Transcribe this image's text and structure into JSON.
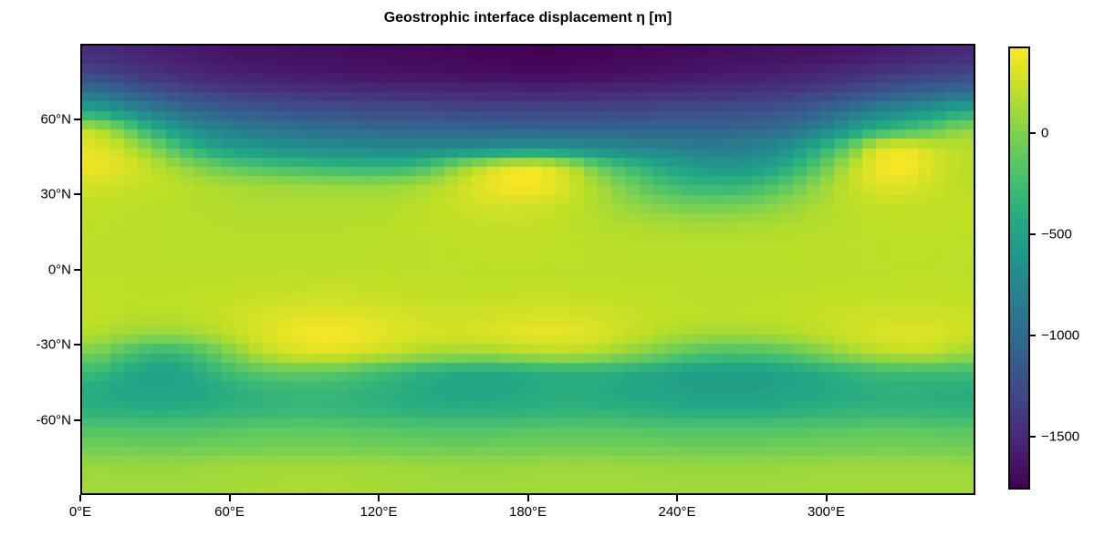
{
  "figure": {
    "background": "#ffffff",
    "text_color": "#000000"
  },
  "chart_data": {
    "type": "heatmap",
    "title": "Geostrophic interface displacement η [m]",
    "xlabel": "",
    "ylabel": "",
    "colormap": "viridis",
    "colormap_stops": [
      "#440154",
      "#482475",
      "#414487",
      "#355f8d",
      "#2a788e",
      "#21918c",
      "#22a884",
      "#44bf70",
      "#7ad151",
      "#bddf26",
      "#fde725"
    ],
    "vmin": -1760,
    "vmax": 430,
    "x_range": [
      0,
      360
    ],
    "y_range": [
      -90,
      90
    ],
    "grid": false,
    "legend_position": "colorbar-right",
    "x_ticks": [
      {
        "value": 0,
        "label": "0°E"
      },
      {
        "value": 60,
        "label": "60°E"
      },
      {
        "value": 120,
        "label": "120°E"
      },
      {
        "value": 180,
        "label": "180°E"
      },
      {
        "value": 240,
        "label": "240°E"
      },
      {
        "value": 300,
        "label": "300°E"
      }
    ],
    "y_ticks": [
      {
        "value": 60,
        "label": "60°N"
      },
      {
        "value": 30,
        "label": "30°N"
      },
      {
        "value": 0,
        "label": "0°N"
      },
      {
        "value": -30,
        "label": "-30°N"
      },
      {
        "value": -60,
        "label": "-60°N"
      }
    ],
    "colorbar_ticks": [
      {
        "value": 0,
        "label": "0"
      },
      {
        "value": -500,
        "label": "−500"
      },
      {
        "value": -1000,
        "label": "−1000"
      },
      {
        "value": -1500,
        "label": "−1500"
      }
    ],
    "lon": [
      5.6,
      16.9,
      28.1,
      39.4,
      50.6,
      61.9,
      73.1,
      84.4,
      95.6,
      106.9,
      118.1,
      129.4,
      140.6,
      151.9,
      163.1,
      174.4,
      185.6,
      196.9,
      208.1,
      219.4,
      230.6,
      241.9,
      253.1,
      264.4,
      275.6,
      286.9,
      298.1,
      309.4,
      320.6,
      331.9,
      343.1,
      354.4
    ],
    "lat": [
      84.4,
      76.9,
      69.4,
      61.9,
      54.4,
      46.9,
      39.4,
      31.9,
      24.4,
      16.9,
      9.4,
      1.9,
      -5.6,
      -13.1,
      -20.6,
      -28.1,
      -35.6,
      -43.1,
      -50.6,
      -58.1,
      -65.6,
      -73.1,
      -80.6,
      -88.1
    ],
    "values": [
      [
        -1480,
        -1520,
        -1560,
        -1590,
        -1620,
        -1650,
        -1660,
        -1670,
        -1680,
        -1690,
        -1700,
        -1710,
        -1720,
        -1730,
        -1740,
        -1750,
        -1760,
        -1750,
        -1740,
        -1730,
        -1720,
        -1700,
        -1690,
        -1680,
        -1670,
        -1660,
        -1650,
        -1630,
        -1600,
        -1570,
        -1530,
        -1500
      ],
      [
        -1300,
        -1380,
        -1450,
        -1500,
        -1540,
        -1570,
        -1590,
        -1610,
        -1620,
        -1630,
        -1640,
        -1650,
        -1660,
        -1670,
        -1680,
        -1690,
        -1700,
        -1690,
        -1680,
        -1670,
        -1650,
        -1630,
        -1620,
        -1600,
        -1580,
        -1560,
        -1530,
        -1490,
        -1440,
        -1390,
        -1340,
        -1310
      ],
      [
        -950,
        -1080,
        -1200,
        -1290,
        -1350,
        -1390,
        -1420,
        -1440,
        -1460,
        -1470,
        -1480,
        -1490,
        -1500,
        -1510,
        -1520,
        -1520,
        -1530,
        -1520,
        -1510,
        -1500,
        -1490,
        -1480,
        -1470,
        -1450,
        -1430,
        -1400,
        -1350,
        -1280,
        -1200,
        -1130,
        -1050,
        -980
      ],
      [
        -480,
        -640,
        -820,
        -960,
        -1060,
        -1120,
        -1160,
        -1190,
        -1210,
        -1230,
        -1250,
        -1260,
        -1270,
        -1280,
        -1290,
        -1290,
        -1300,
        -1300,
        -1290,
        -1280,
        -1270,
        -1260,
        -1250,
        -1230,
        -1200,
        -1150,
        -1060,
        -930,
        -800,
        -700,
        -600,
        -450
      ],
      [
        220,
        -40,
        -380,
        -600,
        -760,
        -850,
        -900,
        -940,
        -970,
        -990,
        -1010,
        -1020,
        -1030,
        -1040,
        -1050,
        -1050,
        -1060,
        -1060,
        -1050,
        -1050,
        -1040,
        -1040,
        -1050,
        -1040,
        -1010,
        -940,
        -800,
        -600,
        -380,
        -250,
        -120,
        60
      ],
      [
        350,
        240,
        40,
        -230,
        -440,
        -560,
        -620,
        -660,
        -690,
        -710,
        -730,
        -740,
        -740,
        -730,
        -700,
        -660,
        -650,
        -680,
        -720,
        -760,
        -790,
        -810,
        -830,
        -820,
        -760,
        -620,
        -380,
        -80,
        330,
        400,
        280,
        200
      ],
      [
        380,
        330,
        220,
        100,
        -30,
        -130,
        -200,
        -250,
        -290,
        -320,
        -330,
        -320,
        -180,
        60,
        260,
        380,
        390,
        220,
        -80,
        -250,
        -400,
        -520,
        -600,
        -620,
        -550,
        -370,
        -120,
        180,
        390,
        430,
        310,
        200
      ],
      [
        280,
        260,
        230,
        200,
        170,
        140,
        120,
        110,
        100,
        90,
        90,
        110,
        160,
        260,
        360,
        420,
        400,
        290,
        140,
        -30,
        -180,
        -290,
        -340,
        -330,
        -250,
        -100,
        80,
        230,
        330,
        340,
        260,
        200
      ],
      [
        220,
        210,
        200,
        190,
        180,
        170,
        160,
        160,
        160,
        160,
        170,
        180,
        210,
        250,
        290,
        300,
        280,
        230,
        160,
        80,
        10,
        -40,
        -60,
        -50,
        0,
        80,
        150,
        200,
        230,
        230,
        220,
        220
      ],
      [
        210,
        205,
        200,
        195,
        190,
        185,
        180,
        180,
        180,
        185,
        190,
        200,
        215,
        230,
        240,
        240,
        230,
        210,
        185,
        160,
        140,
        125,
        120,
        125,
        140,
        160,
        180,
        200,
        210,
        215,
        215,
        212
      ],
      [
        205,
        202,
        200,
        198,
        196,
        195,
        194,
        194,
        195,
        197,
        200,
        203,
        207,
        211,
        214,
        215,
        214,
        210,
        205,
        199,
        194,
        191,
        190,
        191,
        194,
        198,
        202,
        206,
        209,
        211,
        211,
        208
      ],
      [
        203,
        201,
        199,
        197,
        195,
        194,
        193,
        193,
        194,
        196,
        199,
        202,
        206,
        209,
        212,
        213,
        212,
        209,
        204,
        199,
        195,
        192,
        191,
        192,
        195,
        198,
        202,
        205,
        208,
        210,
        210,
        206
      ],
      [
        205,
        204,
        203,
        203,
        204,
        206,
        209,
        212,
        214,
        215,
        214,
        211,
        208,
        205,
        203,
        202,
        202,
        203,
        204,
        205,
        205,
        204,
        202,
        200,
        199,
        199,
        200,
        202,
        204,
        206,
        207,
        206
      ],
      [
        215,
        212,
        210,
        212,
        220,
        232,
        246,
        258,
        264,
        262,
        252,
        240,
        232,
        230,
        234,
        240,
        243,
        240,
        232,
        222,
        213,
        207,
        204,
        204,
        207,
        212,
        218,
        224,
        229,
        232,
        231,
        224
      ],
      [
        220,
        205,
        195,
        200,
        225,
        262,
        300,
        330,
        345,
        340,
        318,
        290,
        272,
        268,
        276,
        290,
        300,
        295,
        276,
        252,
        230,
        215,
        207,
        206,
        212,
        224,
        240,
        257,
        270,
        278,
        276,
        258
      ],
      [
        180,
        120,
        85,
        95,
        150,
        235,
        320,
        385,
        415,
        408,
        370,
        325,
        295,
        290,
        310,
        345,
        370,
        362,
        322,
        262,
        200,
        152,
        125,
        122,
        140,
        175,
        220,
        268,
        308,
        330,
        325,
        272
      ],
      [
        -30,
        -200,
        -330,
        -310,
        -170,
        40,
        200,
        300,
        330,
        315,
        265,
        205,
        150,
        115,
        120,
        160,
        200,
        205,
        160,
        80,
        -20,
        -120,
        -200,
        -230,
        -200,
        -120,
        -10,
        100,
        185,
        230,
        225,
        120
      ],
      [
        -280,
        -420,
        -510,
        -500,
        -350,
        -230,
        -140,
        -100,
        -110,
        -150,
        -250,
        -320,
        -390,
        -440,
        -460,
        -440,
        -400,
        -370,
        -380,
        -420,
        -470,
        -520,
        -550,
        -560,
        -540,
        -490,
        -420,
        -350,
        -290,
        -260,
        -270,
        -270
      ],
      [
        -420,
        -480,
        -510,
        -500,
        -450,
        -390,
        -340,
        -310,
        -310,
        -330,
        -370,
        -410,
        -450,
        -470,
        -470,
        -450,
        -430,
        -420,
        -430,
        -460,
        -490,
        -520,
        -540,
        -545,
        -530,
        -500,
        -460,
        -420,
        -390,
        -380,
        -390,
        -410
      ],
      [
        -380,
        -400,
        -415,
        -410,
        -385,
        -355,
        -330,
        -315,
        -315,
        -330,
        -350,
        -375,
        -395,
        -405,
        -400,
        -385,
        -370,
        -360,
        -365,
        -380,
        -400,
        -420,
        -430,
        -430,
        -420,
        -400,
        -380,
        -360,
        -350,
        -350,
        -355,
        -365
      ],
      [
        -170,
        -180,
        -190,
        -185,
        -170,
        -155,
        -145,
        -140,
        -140,
        -150,
        -160,
        -170,
        -180,
        -185,
        -180,
        -170,
        -160,
        -155,
        -158,
        -165,
        -175,
        -185,
        -190,
        -190,
        -182,
        -170,
        -158,
        -148,
        -143,
        -143,
        -148,
        -158
      ],
      [
        -55,
        -60,
        -65,
        -63,
        -57,
        -50,
        -45,
        -42,
        -42,
        -46,
        -52,
        -58,
        -63,
        -65,
        -63,
        -57,
        -51,
        -48,
        -49,
        -53,
        -58,
        -64,
        -67,
        -67,
        -62,
        -55,
        -49,
        -44,
        -41,
        -41,
        -45,
        -51
      ],
      [
        88,
        85,
        82,
        85,
        95,
        105,
        115,
        120,
        122,
        118,
        110,
        100,
        92,
        86,
        86,
        90,
        95,
        98,
        97,
        93,
        88,
        84,
        81,
        81,
        84,
        88,
        93,
        97,
        99,
        100,
        97,
        92
      ],
      [
        120,
        118,
        116,
        119,
        126,
        135,
        144,
        150,
        152,
        148,
        140,
        130,
        122,
        117,
        117,
        121,
        126,
        129,
        128,
        125,
        120,
        116,
        113,
        113,
        116,
        120,
        125,
        128,
        130,
        131,
        128,
        124
      ]
    ]
  }
}
